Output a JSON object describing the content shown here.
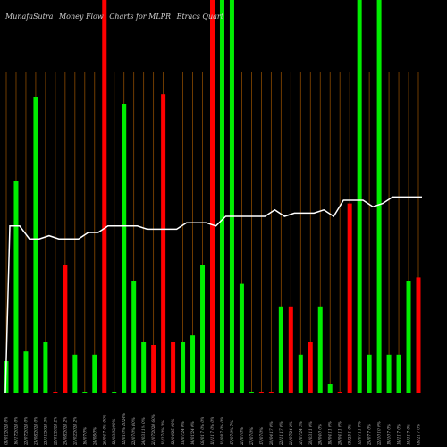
{
  "chart_data": {
    "type": "bar",
    "title_parts": [
      "MunafaSutra",
      "Money Flow",
      "Charts for MLPR",
      "Etracs Quart"
    ],
    "colors": {
      "up": "#00ee00",
      "down": "#ff0000",
      "line": "#ffffff",
      "grid": "#8b4a00",
      "background": "#000000"
    },
    "ylim": [
      0,
      100
    ],
    "values": [
      10,
      66,
      13,
      92,
      16,
      0,
      40,
      12,
      0,
      12,
      100,
      0,
      90,
      35,
      16,
      15,
      93,
      16,
      16,
      18,
      40,
      100,
      100,
      100,
      34,
      0,
      0,
      0,
      27,
      27,
      12,
      16,
      27,
      3,
      0,
      59,
      100,
      12,
      100,
      12,
      12,
      35,
      36
    ],
    "direction": [
      "up",
      "up",
      "up",
      "up",
      "up",
      "down",
      "down",
      "up",
      "up",
      "up",
      "down",
      "up",
      "up",
      "up",
      "up",
      "down",
      "down",
      "down",
      "up",
      "up",
      "up",
      "down",
      "up",
      "up",
      "up",
      "up",
      "down",
      "down",
      "up",
      "down",
      "up",
      "down",
      "up",
      "up",
      "down",
      "down",
      "up",
      "up",
      "up",
      "up",
      "up",
      "up",
      "down"
    ],
    "line_values": [
      52,
      52,
      48,
      48,
      49,
      48,
      48,
      48,
      50,
      50,
      52,
      52,
      52,
      52,
      51,
      51,
      51,
      51,
      53,
      53,
      53,
      52,
      55,
      55,
      55,
      55,
      55,
      57,
      55,
      56,
      56,
      56,
      57,
      55,
      60,
      60,
      60,
      58,
      59,
      61,
      61,
      61,
      61
    ],
    "xticks": [
      "08/01/2024 0%",
      "16/17/2024 0%",
      "22/07/2024 0%",
      "23/08/2024 0%",
      "22/11/2024 3%",
      "22/01/2024 2%",
      "25/08/2024 2%",
      "21/02/2024 2%",
      "16/07 0%",
      "24/08 0%",
      "26/04 7 0% 00%",
      "12/03 03/00%",
      "12/01 0% 2024%",
      "22/07 0% 40%",
      "24/03 11% 0%",
      "21/07/2024 60%",
      "11/27 0% 0%",
      "12/04/25 00%",
      "13/07/24 0%",
      "14/01/24 0%",
      "06/01 7 0% 0%",
      "11/11 7 0% 0%",
      "11/08 7 0% 0%",
      "17/07 0% 7%",
      "21/07 0%",
      "27/07 0%",
      "17/07 0%",
      "20/04 17 0%",
      "22/11 17 0%",
      "21/07/24 2%",
      "31/07/24 3%",
      "30/03 11 0%",
      "29/04 0 0%",
      "18/04 11 0%",
      "29/04 11 0%",
      "09/25 1 0%",
      "12/07 11 0%",
      "25/07 7 0%",
      "22/10 10 0%",
      "19/10 7 0%",
      "14/11 7 0%",
      "14/11 7 0%",
      "06/21 7 0%"
    ]
  }
}
